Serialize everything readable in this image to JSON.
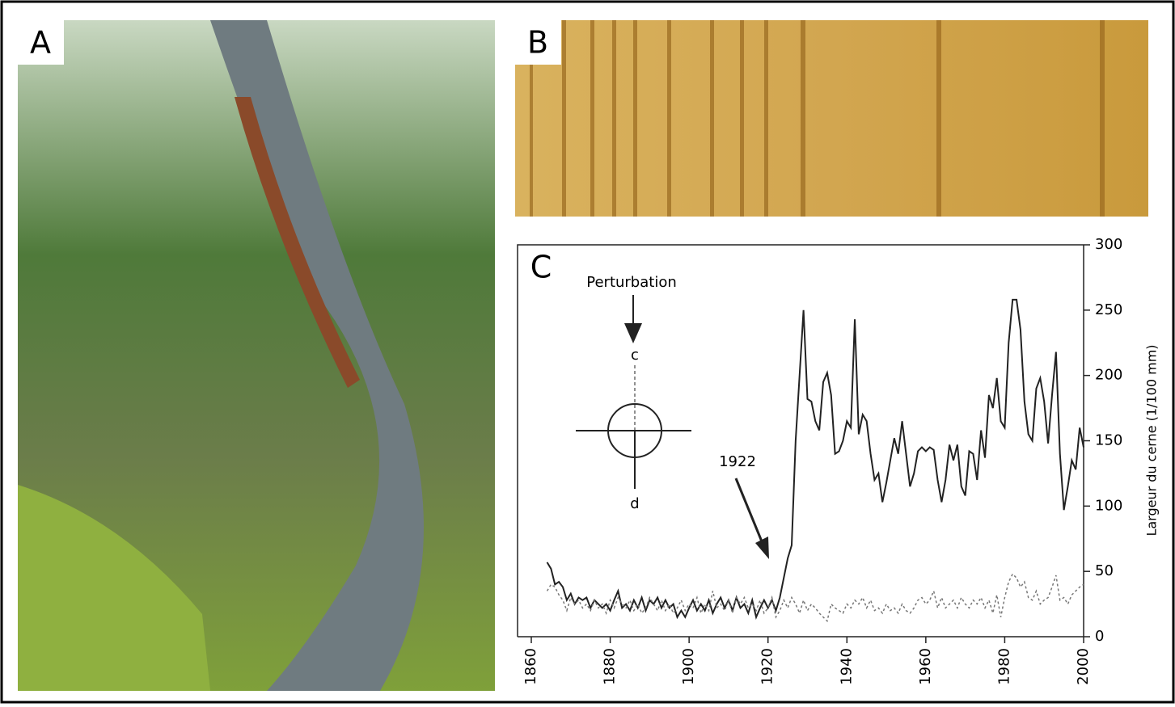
{
  "panel_labels": [
    "A",
    "B"
  ],
  "chart_data": {
    "type": "line",
    "panel_label": "C",
    "y_axis_label": "Largeur du cerne (1/100 mm)",
    "annotations": [
      "Perturbation",
      "c",
      "d",
      "1922"
    ],
    "x": [
      1864,
      1865,
      1866,
      1867,
      1868,
      1869,
      1870,
      1871,
      1872,
      1873,
      1874,
      1875,
      1876,
      1877,
      1878,
      1879,
      1880,
      1881,
      1882,
      1883,
      1884,
      1885,
      1886,
      1887,
      1888,
      1889,
      1890,
      1891,
      1892,
      1893,
      1894,
      1895,
      1896,
      1897,
      1898,
      1899,
      1900,
      1901,
      1902,
      1903,
      1904,
      1905,
      1906,
      1907,
      1908,
      1909,
      1910,
      1911,
      1912,
      1913,
      1914,
      1915,
      1916,
      1917,
      1918,
      1919,
      1920,
      1921,
      1922,
      1923,
      1924,
      1925,
      1926,
      1927,
      1928,
      1929,
      1930,
      1931,
      1932,
      1933,
      1934,
      1935,
      1936,
      1937,
      1938,
      1939,
      1940,
      1941,
      1942,
      1943,
      1944,
      1945,
      1946,
      1947,
      1948,
      1949,
      1950,
      1951,
      1952,
      1953,
      1954,
      1955,
      1956,
      1957,
      1958,
      1959,
      1960,
      1961,
      1962,
      1963,
      1964,
      1965,
      1966,
      1967,
      1968,
      1969,
      1970,
      1971,
      1972,
      1973,
      1974,
      1975,
      1976,
      1977,
      1978,
      1979,
      1980,
      1981,
      1982,
      1983,
      1984,
      1985,
      1986,
      1987,
      1988,
      1989,
      1990,
      1991,
      1992,
      1993,
      1994,
      1995,
      1996,
      1997,
      1998,
      1999,
      2000
    ],
    "series": [
      {
        "color": "#222222",
        "style": "solid",
        "values": [
          57,
          52,
          40,
          42,
          38,
          28,
          33,
          25,
          30,
          28,
          30,
          22,
          28,
          25,
          22,
          25,
          20,
          28,
          35,
          22,
          25,
          20,
          28,
          22,
          30,
          20,
          28,
          25,
          30,
          22,
          28,
          22,
          25,
          15,
          20,
          15,
          22,
          28,
          20,
          25,
          20,
          28,
          18,
          25,
          30,
          22,
          28,
          20,
          30,
          22,
          25,
          18,
          28,
          15,
          22,
          28,
          22,
          28,
          20,
          30,
          45,
          60,
          70,
          150,
          200,
          250,
          182,
          180,
          165,
          158,
          195,
          202,
          185,
          140,
          142,
          150,
          165,
          160,
          243,
          155,
          170,
          165,
          140,
          120,
          125,
          103,
          118,
          135,
          152,
          140,
          165,
          140,
          115,
          125,
          142,
          145,
          142,
          145,
          143,
          120,
          103,
          120,
          147,
          135,
          147,
          115,
          108,
          142,
          140,
          120,
          158,
          137,
          185,
          175,
          198,
          165,
          160,
          225,
          258,
          258,
          235,
          180,
          155,
          150,
          190,
          198,
          180,
          148,
          185,
          218,
          140,
          97,
          115,
          135,
          128,
          160,
          145
        ]
      },
      {
        "color": "#777777",
        "style": "dotted",
        "values": [
          35,
          40,
          38,
          32,
          28,
          20,
          30,
          25,
          28,
          22,
          25,
          20,
          28,
          22,
          25,
          18,
          28,
          22,
          30,
          25,
          22,
          28,
          20,
          25,
          18,
          22,
          30,
          25,
          20,
          28,
          20,
          25,
          18,
          22,
          28,
          20,
          25,
          22,
          30,
          18,
          25,
          20,
          35,
          22,
          25,
          20,
          28,
          18,
          30,
          25,
          30,
          22,
          25,
          20,
          28,
          18,
          22,
          30,
          15,
          20,
          28,
          22,
          30,
          25,
          18,
          28,
          20,
          25,
          22,
          18,
          15,
          12,
          25,
          22,
          20,
          18,
          25,
          22,
          28,
          25,
          30,
          22,
          28,
          20,
          22,
          18,
          25,
          20,
          22,
          18,
          25,
          20,
          18,
          22,
          28,
          30,
          25,
          28,
          35,
          22,
          30,
          22,
          25,
          28,
          22,
          30,
          25,
          22,
          28,
          25,
          30,
          22,
          28,
          18,
          32,
          15,
          30,
          42,
          48,
          45,
          38,
          42,
          30,
          28,
          35,
          25,
          28,
          30,
          38,
          47,
          28,
          30,
          25,
          32,
          35,
          38,
          40
        ]
      }
    ],
    "xlim": [
      1860,
      2000
    ],
    "xticks": [
      1860,
      1880,
      1900,
      1920,
      1940,
      1960,
      1980,
      2000
    ],
    "ylim": [
      0,
      300
    ],
    "yticks": [
      0,
      50,
      100,
      150,
      200,
      250,
      300
    ],
    "y_axis_side": "right"
  }
}
